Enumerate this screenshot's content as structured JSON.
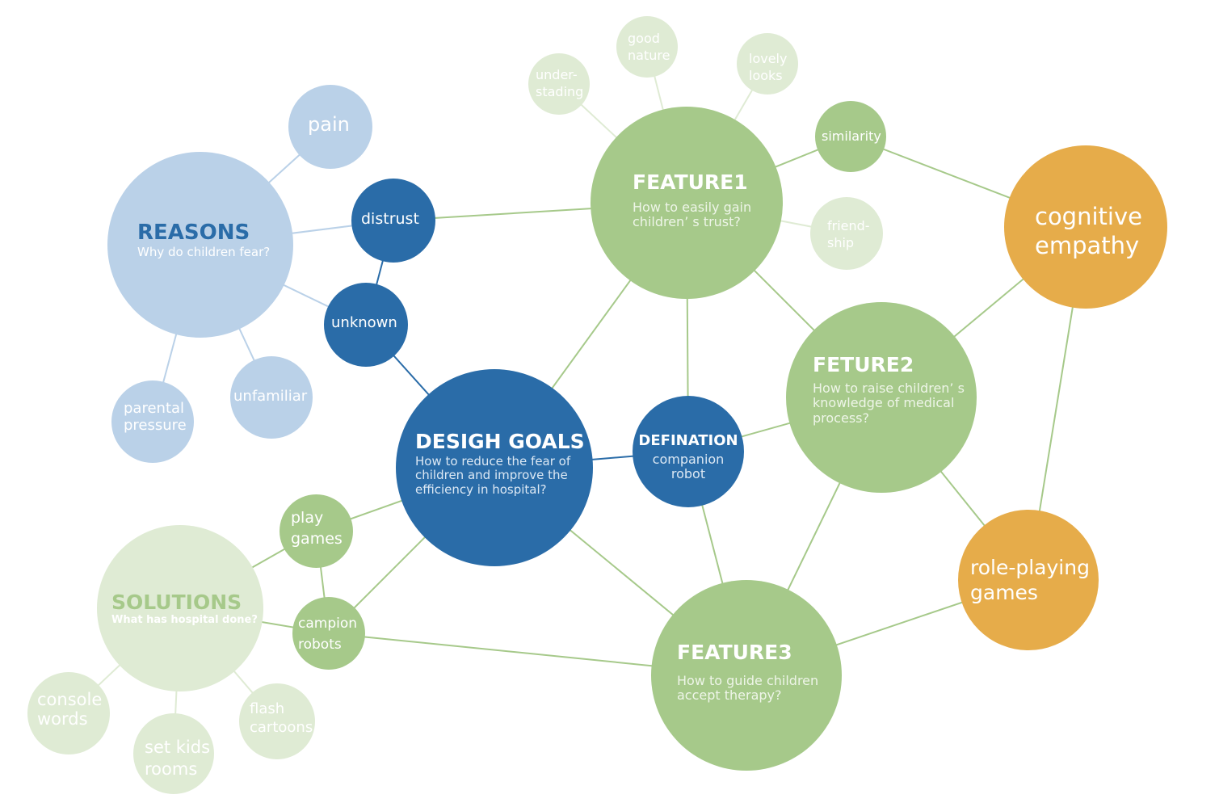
{
  "colors": {
    "dark_blue": "#2a6ca8",
    "light_blue": "#bad1e8",
    "green": "#a6c98a",
    "pale_green": "#dfebd4",
    "orange": "#e6ac4a",
    "link_blue": "#2a6ca8",
    "link_light_blue": "#bad1e8",
    "link_green": "#a6c98a",
    "link_pale_green": "#dfebd4"
  },
  "nodes": {
    "design_goals": {
      "title": "DESIGH GOALS",
      "text": "How to reduce the fear of\nchildren and improve the\nefficiency in hospital?"
    },
    "reasons": {
      "title": "REASONS",
      "text": "Why do children fear?"
    },
    "solutions": {
      "title": "SOLUTIONS",
      "text": "What has hospital done?"
    },
    "feature1": {
      "title": "FEATURE1",
      "text": "How to easily gain\nchildren’ s trust?"
    },
    "feture2": {
      "title": "FETURE2",
      "text": "How to raise children’ s\nknowledge of medical\nprocess?"
    },
    "feature3": {
      "title": "FEATURE3",
      "text": "How to  guide children\naccept therapy?"
    },
    "defination": {
      "title": "DEFINATION",
      "text": "companion\nrobot"
    },
    "distrust": {
      "text": "distrust"
    },
    "unknown": {
      "text": "unknown"
    },
    "pain": {
      "text": "pain"
    },
    "parental_pressure": {
      "text": "parental\npressure"
    },
    "unfamiliar": {
      "text": "unfamiliar"
    },
    "play_games": {
      "text": "play\ngames"
    },
    "campion_robots": {
      "text": "campion\nrobots"
    },
    "console_words": {
      "text": "console\nwords"
    },
    "set_kids_rooms": {
      "text": "set kids\nrooms"
    },
    "flash_cartoons": {
      "text": "flash\ncartoons"
    },
    "understading": {
      "text": "under-\nstading"
    },
    "good_nature": {
      "text": "good\nnature"
    },
    "lovely_looks": {
      "text": "lovely\nlooks"
    },
    "similarity": {
      "text": "similarity"
    },
    "friendship": {
      "text": "friend-\nship"
    },
    "cognitive_empathy": {
      "text": "cognitive\nempathy"
    },
    "role_playing_games": {
      "text": "role-playing\ngames"
    }
  },
  "links": [
    {
      "from": "reasons",
      "to": "pain",
      "style": "light_blue"
    },
    {
      "from": "reasons",
      "to": "distrust",
      "style": "light_blue"
    },
    {
      "from": "reasons",
      "to": "unknown",
      "style": "light_blue"
    },
    {
      "from": "reasons",
      "to": "parental_pressure",
      "style": "light_blue"
    },
    {
      "from": "reasons",
      "to": "unfamiliar",
      "style": "light_blue"
    },
    {
      "from": "distrust",
      "to": "unknown",
      "style": "blue"
    },
    {
      "from": "unknown",
      "to": "design_goals",
      "style": "blue"
    },
    {
      "from": "design_goals",
      "to": "defination",
      "style": "blue"
    },
    {
      "from": "distrust",
      "to": "feature1",
      "style": "green"
    },
    {
      "from": "design_goals",
      "to": "feature1",
      "style": "green"
    },
    {
      "from": "design_goals",
      "to": "feature3",
      "style": "green"
    },
    {
      "from": "design_goals",
      "to": "play_games",
      "style": "green"
    },
    {
      "from": "design_goals",
      "to": "campion_robots",
      "style": "green"
    },
    {
      "from": "feature1",
      "to": "defination",
      "style": "green"
    },
    {
      "from": "feature1",
      "to": "feture2",
      "style": "green"
    },
    {
      "from": "feature1",
      "to": "similarity",
      "style": "green"
    },
    {
      "from": "feature1",
      "to": "understading",
      "style": "pale_green"
    },
    {
      "from": "feature1",
      "to": "good_nature",
      "style": "pale_green"
    },
    {
      "from": "feature1",
      "to": "lovely_looks",
      "style": "pale_green"
    },
    {
      "from": "feature1",
      "to": "friendship",
      "style": "pale_green"
    },
    {
      "from": "similarity",
      "to": "cognitive_empathy",
      "style": "green"
    },
    {
      "from": "feture2",
      "to": "cognitive_empathy",
      "style": "green"
    },
    {
      "from": "feture2",
      "to": "defination",
      "style": "green"
    },
    {
      "from": "feture2",
      "to": "feature3",
      "style": "green"
    },
    {
      "from": "feture2",
      "to": "role_playing_games",
      "style": "green"
    },
    {
      "from": "cognitive_empathy",
      "to": "role_playing_games",
      "style": "green"
    },
    {
      "from": "defination",
      "to": "feature3",
      "style": "green"
    },
    {
      "from": "feature3",
      "to": "role_playing_games",
      "style": "green"
    },
    {
      "from": "feature3",
      "to": "campion_robots",
      "style": "green"
    },
    {
      "from": "play_games",
      "to": "campion_robots",
      "style": "green"
    },
    {
      "from": "solutions",
      "to": "play_games",
      "style": "green"
    },
    {
      "from": "solutions",
      "to": "campion_robots",
      "style": "green"
    },
    {
      "from": "solutions",
      "to": "console_words",
      "style": "pale_green"
    },
    {
      "from": "solutions",
      "to": "set_kids_rooms",
      "style": "pale_green"
    },
    {
      "from": "solutions",
      "to": "flash_cartoons",
      "style": "pale_green"
    }
  ]
}
